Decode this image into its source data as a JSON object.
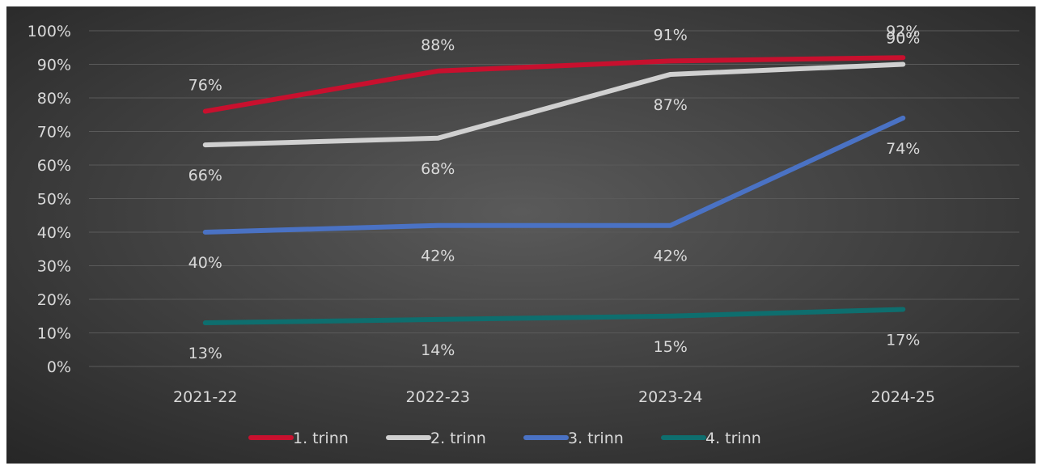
{
  "chart_data": {
    "type": "line",
    "categories": [
      "2021-22",
      "2022-23",
      "2023-24",
      "2024-25"
    ],
    "series": [
      {
        "name": "1. trinn",
        "values": [
          76,
          88,
          91,
          92
        ],
        "color": "#c8102e",
        "labels": [
          "76%",
          "88%",
          "91%",
          "92%"
        ]
      },
      {
        "name": "2. trinn",
        "values": [
          66,
          68,
          87,
          90
        ],
        "color": "#d0d0d0",
        "labels": [
          "66%",
          "68%",
          "87%",
          "90%"
        ]
      },
      {
        "name": "3. trinn",
        "values": [
          40,
          42,
          42,
          74
        ],
        "color": "#4a72c4",
        "labels": [
          "40%",
          "42%",
          "42%",
          "74%"
        ]
      },
      {
        "name": "4. trinn",
        "values": [
          13,
          14,
          15,
          17
        ],
        "color": "#0e6e6e",
        "labels": [
          "13%",
          "14%",
          "15%",
          "17%"
        ]
      }
    ],
    "yticks": [
      "0%",
      "10%",
      "20%",
      "30%",
      "40%",
      "50%",
      "60%",
      "70%",
      "80%",
      "90%",
      "100%"
    ],
    "ylim": [
      0,
      100
    ],
    "grid": true,
    "legend_position": "bottom",
    "background": "#3a3a3a"
  }
}
